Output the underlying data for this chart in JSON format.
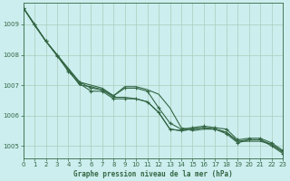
{
  "xlabel": "Graphe pression niveau de la mer (hPa)",
  "background_color": "#cceeee",
  "grid_color": "#aaccbb",
  "line_color": "#336644",
  "text_color": "#336644",
  "xlim": [
    0,
    23
  ],
  "ylim": [
    1004.6,
    1009.7
  ],
  "yticks": [
    1005,
    1006,
    1007,
    1008,
    1009
  ],
  "xticks": [
    0,
    1,
    2,
    3,
    4,
    5,
    6,
    7,
    8,
    9,
    10,
    11,
    12,
    13,
    14,
    15,
    16,
    17,
    18,
    19,
    20,
    21,
    22,
    23
  ],
  "series_with_markers": [
    [
      1009.55,
      1009.0,
      1008.45,
      1008.0,
      1007.5,
      1007.1,
      1006.9,
      1006.85,
      1006.65,
      1006.9,
      1006.9,
      1006.8,
      1006.25,
      1005.75,
      1005.55,
      1005.6,
      1005.65,
      1005.6,
      1005.55,
      1005.2,
      1005.25,
      1005.25,
      1005.1,
      1004.85
    ],
    [
      1009.55,
      1009.0,
      1008.45,
      1007.97,
      1007.45,
      1007.05,
      1006.8,
      1006.8,
      1006.55,
      1006.55,
      1006.55,
      1006.45,
      1006.1,
      1005.55,
      1005.5,
      1005.55,
      1005.6,
      1005.55,
      1005.4,
      1005.1,
      1005.2,
      1005.2,
      1005.0,
      1004.75
    ]
  ],
  "series_lines_only": [
    [
      1009.55,
      1008.97,
      1008.45,
      1007.97,
      1007.5,
      1007.0,
      1006.95,
      1006.85,
      1006.6,
      1006.6,
      1006.55,
      1006.45,
      1006.1,
      1005.55,
      1005.5,
      1005.55,
      1005.6,
      1005.55,
      1005.45,
      1005.15,
      1005.2,
      1005.2,
      1005.05,
      1004.8
    ],
    [
      1009.55,
      1009.0,
      1008.45,
      1008.0,
      1007.55,
      1007.1,
      1007.0,
      1006.9,
      1006.65,
      1006.95,
      1006.95,
      1006.85,
      1006.7,
      1006.25,
      1005.6,
      1005.5,
      1005.55,
      1005.55,
      1005.45,
      1005.15,
      1005.15,
      1005.15,
      1005.05,
      1004.8
    ]
  ]
}
